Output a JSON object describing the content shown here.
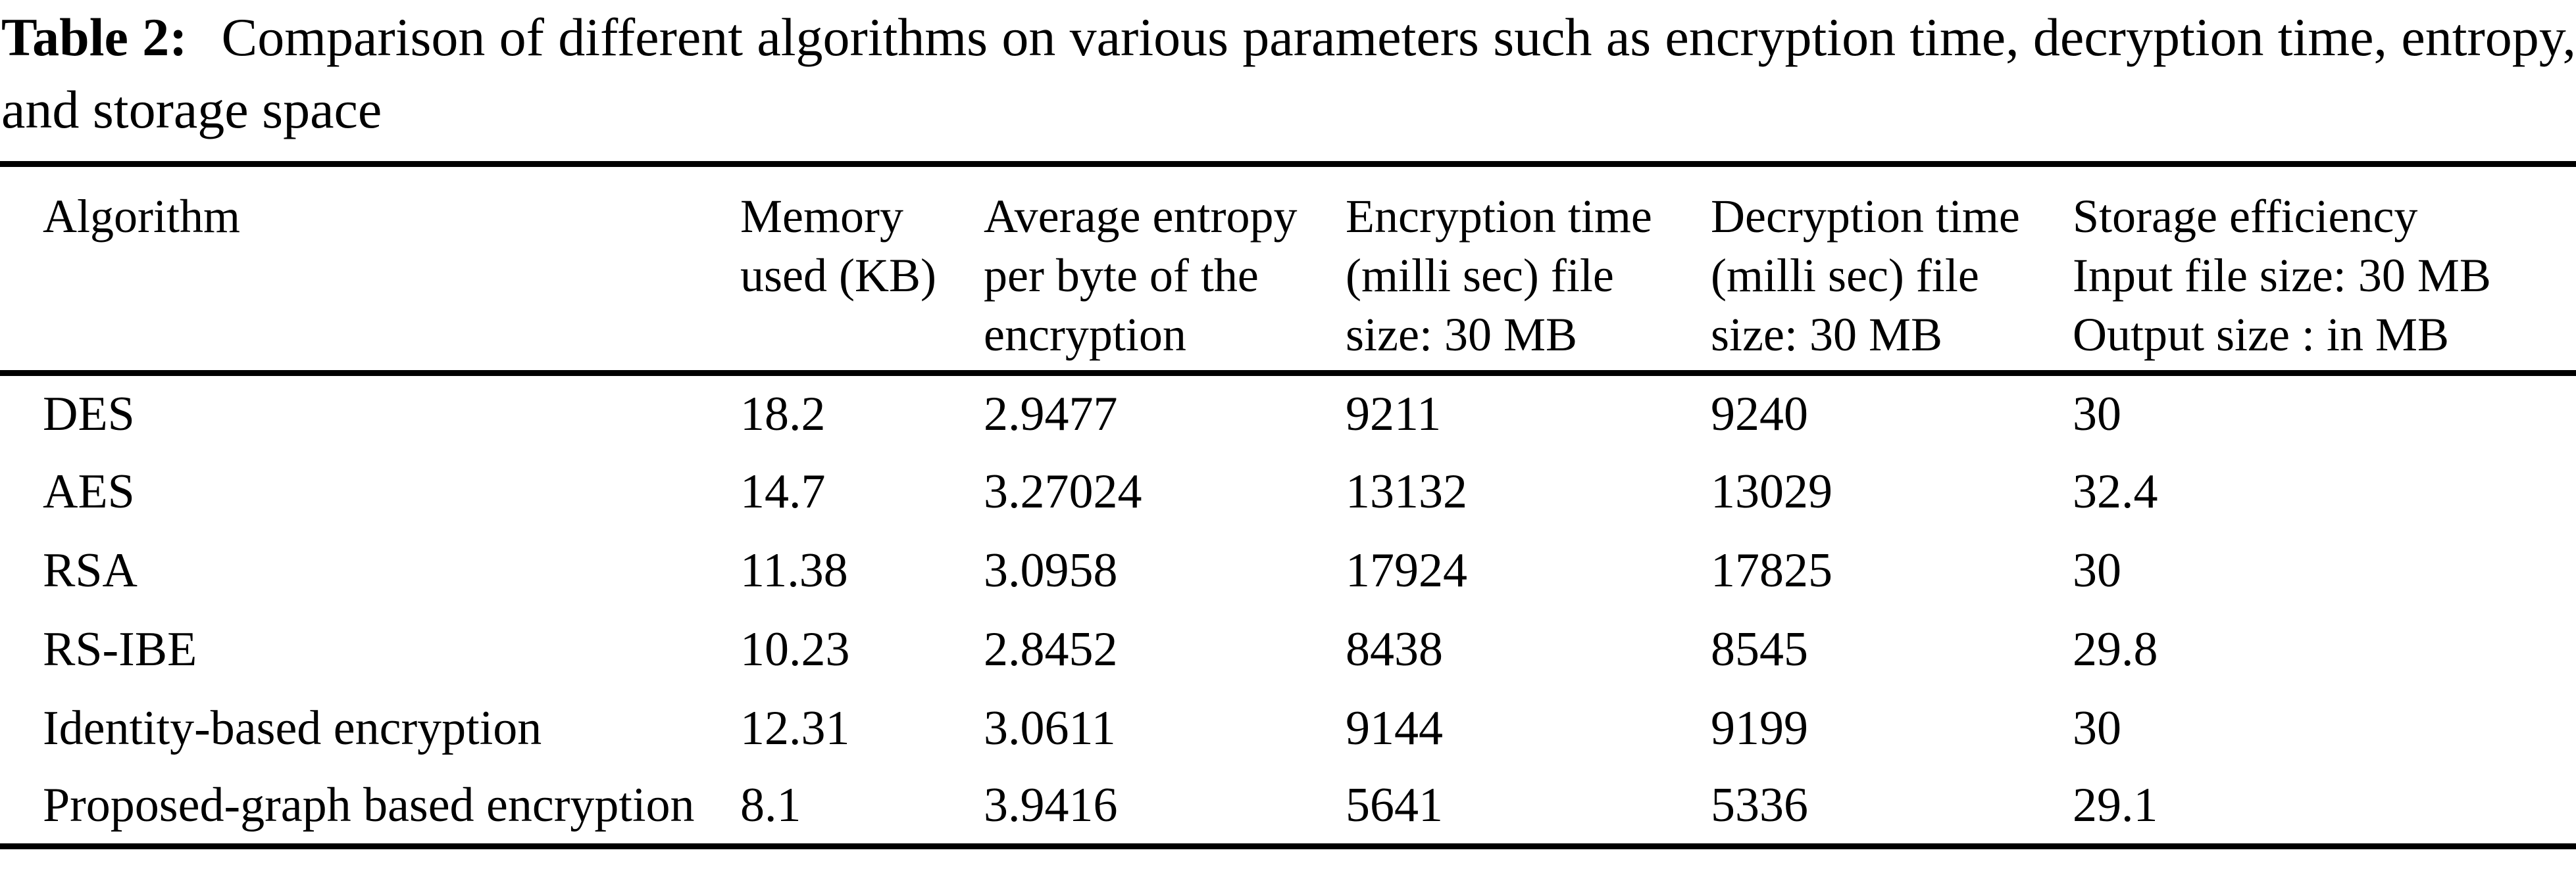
{
  "caption": {
    "label": "Table 2:",
    "text": "Comparison of different algorithms on various parameters such as encryption time, decryption time, entropy, and storage space"
  },
  "table": {
    "columns": [
      {
        "label": "Algorithm"
      },
      {
        "label": "Memory\nused (KB)"
      },
      {
        "label": "Average entropy\nper byte of the\nencryption"
      },
      {
        "label": "Encryption time\n(milli sec) file\nsize: 30 MB"
      },
      {
        "label": "Decryption time\n(milli sec) file\nsize: 30 MB"
      },
      {
        "label": "Storage efficiency\nInput file size: 30 MB\nOutput size : in MB"
      }
    ],
    "rows": [
      {
        "algorithm": "DES",
        "memory_kb": "18.2",
        "avg_entropy": "2.9477",
        "encryption_ms": "9211",
        "decryption_ms": "9240",
        "storage_mb": "30"
      },
      {
        "algorithm": "AES",
        "memory_kb": "14.7",
        "avg_entropy": "3.27024",
        "encryption_ms": "13132",
        "decryption_ms": "13029",
        "storage_mb": "32.4"
      },
      {
        "algorithm": "RSA",
        "memory_kb": "11.38",
        "avg_entropy": "3.0958",
        "encryption_ms": "17924",
        "decryption_ms": "17825",
        "storage_mb": "30"
      },
      {
        "algorithm": "RS-IBE",
        "memory_kb": "10.23",
        "avg_entropy": "2.8452",
        "encryption_ms": "8438",
        "decryption_ms": "8545",
        "storage_mb": "29.8"
      },
      {
        "algorithm": "Identity-based encryption",
        "memory_kb": "12.31",
        "avg_entropy": "3.0611",
        "encryption_ms": "9144",
        "decryption_ms": "9199",
        "storage_mb": "30"
      },
      {
        "algorithm": "Proposed-graph based encryption",
        "memory_kb": "8.1",
        "avg_entropy": "3.9416",
        "encryption_ms": "5641",
        "decryption_ms": "5336",
        "storage_mb": "29.1"
      }
    ]
  },
  "colors": {
    "text": "#000000",
    "background": "#ffffff",
    "rule": "#000000"
  }
}
